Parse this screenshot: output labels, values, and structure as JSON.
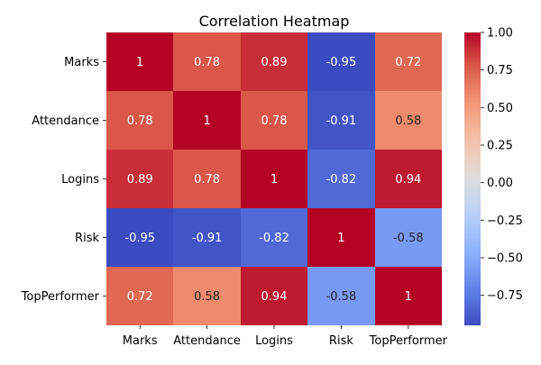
{
  "chart_data": {
    "type": "heatmap",
    "title": "Correlation Heatmap",
    "xlabel": "",
    "ylabel": "",
    "x_categories": [
      "Marks",
      "Attendance",
      "Logins",
      "Risk",
      "TopPerformer"
    ],
    "y_categories": [
      "Marks",
      "Attendance",
      "Logins",
      "Risk",
      "TopPerformer"
    ],
    "values": [
      [
        1,
        0.78,
        0.89,
        -0.95,
        0.72
      ],
      [
        0.78,
        1,
        0.78,
        -0.91,
        0.58
      ],
      [
        0.89,
        0.78,
        1,
        -0.82,
        0.94
      ],
      [
        -0.95,
        -0.91,
        -0.82,
        1,
        -0.58
      ],
      [
        0.72,
        0.58,
        0.94,
        -0.58,
        1
      ]
    ],
    "cell_labels": [
      [
        "1",
        "0.78",
        "0.89",
        "-0.95",
        "0.72"
      ],
      [
        "0.78",
        "1",
        "0.78",
        "-0.91",
        "0.58"
      ],
      [
        "0.89",
        "0.78",
        "1",
        "-0.82",
        "0.94"
      ],
      [
        "-0.95",
        "-0.91",
        "-0.82",
        "1",
        "-0.58"
      ],
      [
        "0.72",
        "0.58",
        "0.94",
        "-0.58",
        "1"
      ]
    ],
    "colormap": "coolwarm",
    "vmin": -0.95,
    "vmax": 1,
    "colorbar": {
      "ticks": [
        1,
        0.75,
        0.5,
        0.25,
        0,
        -0.25,
        -0.5,
        -0.75
      ],
      "tick_labels": [
        "1.00",
        "0.75",
        "0.50",
        "0.25",
        "0.00",
        "−0.25",
        "−0.50",
        "−0.75"
      ]
    },
    "grid": false,
    "legend": "colorbar-right"
  }
}
